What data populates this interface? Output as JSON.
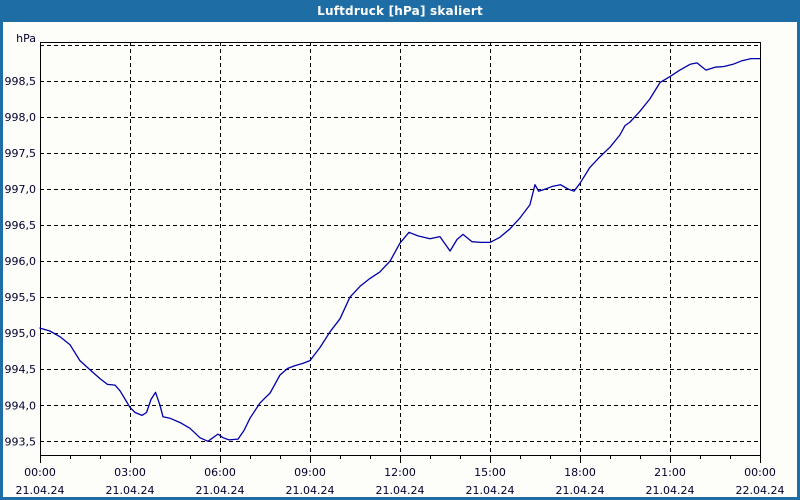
{
  "window": {
    "title": "Luftdruck [hPa] skaliert",
    "frame_color": "#1e6da4",
    "titlebar_text_color": "#ffffff",
    "content_background": "#fdfdfa"
  },
  "chart_data": {
    "type": "line",
    "title": "Luftdruck [hPa] skaliert",
    "grid": true,
    "grid_style": "dashed",
    "grid_color": "#000000",
    "line_color": "#0000a8",
    "legend_position": "none",
    "x_axis": {
      "kind": "time",
      "start_hour": 0,
      "end_hour": 24,
      "minor_tick_hours": 1,
      "major_tick_hours": 3,
      "gridline_hours": [
        3,
        6,
        9,
        12,
        15,
        18,
        21
      ],
      "tick_labels": [
        {
          "time": "00:00",
          "date": "21.04.24"
        },
        {
          "time": "03:00",
          "date": "21.04.24"
        },
        {
          "time": "06:00",
          "date": "21.04.24"
        },
        {
          "time": "09:00",
          "date": "21.04.24"
        },
        {
          "time": "12:00",
          "date": "21.04.24"
        },
        {
          "time": "15:00",
          "date": "21.04.24"
        },
        {
          "time": "18:00",
          "date": "21.04.24"
        },
        {
          "time": "21:00",
          "date": "21.04.24"
        },
        {
          "time": "00:00",
          "date": "22.04.24"
        }
      ]
    },
    "y_axis": {
      "unit": "hPa",
      "min": 993.31,
      "max": 999.04,
      "grid_step": 0.5,
      "labeled_ticks": [
        {
          "value": 998.5,
          "label": "998,5"
        },
        {
          "value": 998.0,
          "label": "998,0"
        },
        {
          "value": 997.5,
          "label": "997,5"
        },
        {
          "value": 997.0,
          "label": "997,0"
        },
        {
          "value": 996.5,
          "label": "996,5"
        },
        {
          "value": 996.0,
          "label": "996,0"
        },
        {
          "value": 995.5,
          "label": "995,5"
        },
        {
          "value": 995.0,
          "label": "995,0"
        },
        {
          "value": 994.5,
          "label": "994,5"
        },
        {
          "value": 994.0,
          "label": "994,0"
        },
        {
          "value": 993.5,
          "label": "993,5"
        }
      ]
    },
    "series": [
      {
        "name": "Luftdruck",
        "points_hour_hpa": [
          [
            0,
            995.07
          ],
          [
            0.33,
            995.03
          ],
          [
            0.67,
            994.95
          ],
          [
            1,
            994.84
          ],
          [
            1.33,
            994.62
          ],
          [
            1.67,
            994.49
          ],
          [
            2,
            994.37
          ],
          [
            2.25,
            994.29
          ],
          [
            2.5,
            994.28
          ],
          [
            2.67,
            994.2
          ],
          [
            3,
            993.97
          ],
          [
            3.17,
            993.9
          ],
          [
            3.4,
            993.86
          ],
          [
            3.55,
            993.9
          ],
          [
            3.7,
            994.08
          ],
          [
            3.85,
            994.18
          ],
          [
            4,
            994.0
          ],
          [
            4.1,
            993.84
          ],
          [
            4.33,
            993.82
          ],
          [
            4.67,
            993.76
          ],
          [
            5,
            993.68
          ],
          [
            5.33,
            993.55
          ],
          [
            5.6,
            993.5
          ],
          [
            5.93,
            993.6
          ],
          [
            6.1,
            993.55
          ],
          [
            6.3,
            993.52
          ],
          [
            6.6,
            993.53
          ],
          [
            6.8,
            993.65
          ],
          [
            7,
            993.82
          ],
          [
            7.33,
            994.03
          ],
          [
            7.67,
            994.17
          ],
          [
            8,
            994.42
          ],
          [
            8.25,
            994.51
          ],
          [
            8.5,
            994.55
          ],
          [
            8.75,
            994.58
          ],
          [
            9,
            994.62
          ],
          [
            9.33,
            994.8
          ],
          [
            9.67,
            995.02
          ],
          [
            10,
            995.2
          ],
          [
            10.33,
            995.5
          ],
          [
            10.67,
            995.65
          ],
          [
            11,
            995.76
          ],
          [
            11.33,
            995.85
          ],
          [
            11.67,
            996.0
          ],
          [
            12,
            996.25
          ],
          [
            12.3,
            996.4
          ],
          [
            12.6,
            996.35
          ],
          [
            13,
            996.31
          ],
          [
            13.33,
            996.34
          ],
          [
            13.67,
            996.14
          ],
          [
            13.9,
            996.3
          ],
          [
            14.1,
            996.37
          ],
          [
            14.4,
            996.27
          ],
          [
            14.7,
            996.26
          ],
          [
            15,
            996.26
          ],
          [
            15.33,
            996.33
          ],
          [
            15.67,
            996.45
          ],
          [
            16,
            996.6
          ],
          [
            16.33,
            996.78
          ],
          [
            16.5,
            997.06
          ],
          [
            16.62,
            996.97
          ],
          [
            16.85,
            997.0
          ],
          [
            17.1,
            997.04
          ],
          [
            17.35,
            997.06
          ],
          [
            17.6,
            997.0
          ],
          [
            17.8,
            996.97
          ],
          [
            18,
            997.08
          ],
          [
            18.33,
            997.3
          ],
          [
            18.67,
            997.45
          ],
          [
            19,
            997.58
          ],
          [
            19.33,
            997.75
          ],
          [
            19.5,
            997.88
          ],
          [
            19.67,
            997.93
          ],
          [
            20,
            998.08
          ],
          [
            20.33,
            998.25
          ],
          [
            20.67,
            998.48
          ],
          [
            21,
            998.56
          ],
          [
            21.33,
            998.65
          ],
          [
            21.67,
            998.73
          ],
          [
            21.9,
            998.75
          ],
          [
            22.2,
            998.65
          ],
          [
            22.5,
            998.69
          ],
          [
            22.8,
            998.7
          ],
          [
            23.1,
            998.73
          ],
          [
            23.4,
            998.78
          ],
          [
            23.7,
            998.81
          ],
          [
            24,
            998.81
          ]
        ]
      }
    ]
  }
}
